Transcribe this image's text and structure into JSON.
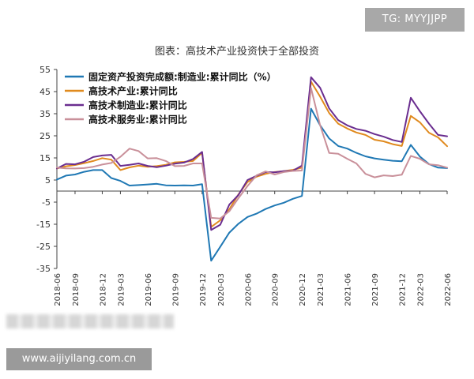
{
  "badge": "TG: MYYJJPP",
  "watermark": "www.aijiyilang.com.cn",
  "chart_data": {
    "type": "line",
    "title": "图表：高技术产业投资快于全部投资",
    "xlabel": "",
    "ylabel": "",
    "ylim": [
      -35,
      55
    ],
    "yticks": [
      55,
      45,
      35,
      25,
      15,
      5,
      -5,
      -15,
      -25,
      -35
    ],
    "grid": false,
    "legend_position": "top-left",
    "x": [
      "2018-06",
      "2018-08",
      "2018-09",
      "2018-10",
      "2018-11",
      "2018-12",
      "2019-02",
      "2019-03",
      "2019-04",
      "2019-05",
      "2019-06",
      "2019-07",
      "2019-08",
      "2019-09",
      "2019-10",
      "2019-11",
      "2019-12",
      "2020-02",
      "2020-03",
      "2020-04",
      "2020-05",
      "2020-06",
      "2020-07",
      "2020-08",
      "2020-09",
      "2020-10",
      "2020-11",
      "2020-12",
      "2021-02",
      "2021-03",
      "2021-04",
      "2021-05",
      "2021-06",
      "2021-07",
      "2021-08",
      "2021-09",
      "2021-10",
      "2021-11",
      "2021-12",
      "2022-02",
      "2022-03",
      "2022-04",
      "2022-05",
      "2022-06"
    ],
    "x_tick_labels": [
      "2018-06",
      "2018-09",
      "2018-12",
      "2019-03",
      "2019-06",
      "2019-09",
      "2019-12",
      "2020-03",
      "2020-06",
      "2020-09",
      "2020-12",
      "2021-03",
      "2021-06",
      "2021-09",
      "2021-12",
      "2022-03",
      "2022-06"
    ],
    "series": [
      {
        "name": "固定资产投资完成额:制造业:累计同比（%）",
        "color": "#1f78b4",
        "values": [
          5.2,
          7.0,
          7.5,
          8.7,
          9.5,
          9.5,
          5.9,
          4.6,
          2.5,
          2.7,
          3.0,
          3.3,
          2.6,
          2.5,
          2.6,
          2.5,
          3.1,
          -31.5,
          -25.2,
          -18.8,
          -14.8,
          -11.7,
          -10.2,
          -8.1,
          -6.5,
          -5.3,
          -3.5,
          -2.2,
          37.3,
          29.8,
          23.8,
          20.4,
          19.2,
          17.3,
          15.7,
          14.8,
          14.2,
          13.7,
          13.5,
          20.9,
          15.6,
          12.2,
          10.6,
          10.4
        ]
      },
      {
        "name": "高技术产业:累计同比",
        "color": "#e08a1e",
        "values": [
          10.2,
          11.2,
          11.8,
          12.6,
          13.6,
          14.9,
          14.2,
          9.5,
          10.7,
          11.5,
          11.0,
          11.3,
          11.9,
          13.0,
          13.2,
          13.6,
          17.3,
          -16.2,
          -13.2,
          -8.2,
          -1.5,
          4.1,
          6.5,
          7.8,
          8.6,
          9.0,
          9.6,
          10.6,
          49.5,
          42.7,
          35.3,
          30.5,
          28.3,
          26.5,
          25.4,
          23.2,
          22.5,
          21.2,
          20.4,
          34.0,
          31.1,
          26.4,
          24.3,
          20.3
        ]
      },
      {
        "name": "高技术制造业:累计同比",
        "color": "#6a2d8f",
        "values": [
          10.2,
          12.3,
          12.1,
          13.3,
          15.4,
          16.1,
          16.4,
          11.4,
          11.9,
          12.5,
          11.4,
          10.8,
          11.5,
          12.4,
          12.9,
          14.5,
          17.7,
          -17.6,
          -15.2,
          -6.1,
          -1.8,
          5.0,
          6.9,
          8.6,
          8.5,
          9.0,
          9.2,
          11.5,
          51.5,
          46.7,
          37.4,
          32.1,
          29.7,
          28.1,
          27.3,
          25.8,
          24.6,
          23.1,
          22.2,
          42.2,
          36.1,
          30.5,
          25.4,
          24.8
        ]
      },
      {
        "name": "高技术服务业:累计同比",
        "color": "#c9909a",
        "values": [
          10.6,
          10.3,
          10.2,
          10.4,
          11.0,
          12.0,
          12.7,
          15.5,
          19.2,
          18.1,
          14.8,
          14.9,
          13.6,
          11.3,
          11.4,
          12.5,
          12.5,
          -12.1,
          -12.4,
          -9.1,
          -3.2,
          2.3,
          7.1,
          8.9,
          7.5,
          8.6,
          9.1,
          9.3,
          46.6,
          29.8,
          17.2,
          16.9,
          14.6,
          12.5,
          7.8,
          6.2,
          7.1,
          6.8,
          7.4,
          15.9,
          14.6,
          12.1,
          11.7,
          10.6
        ]
      }
    ]
  }
}
